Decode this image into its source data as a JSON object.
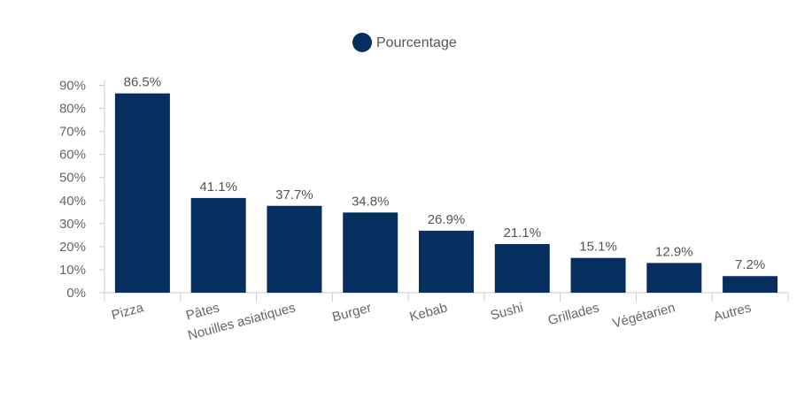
{
  "chart_data": {
    "type": "bar",
    "categories": [
      "Pizza",
      "Pâtes",
      "Nouilles asiatiques",
      "Burger",
      "Kebab",
      "Sushi",
      "Grillades",
      "Végétarien",
      "Autres"
    ],
    "series": [
      {
        "name": "Pourcentage",
        "values": [
          86.5,
          41.1,
          37.7,
          34.8,
          26.9,
          21.1,
          15.1,
          12.9,
          7.2
        ],
        "labels": [
          "86.5%",
          "41.1%",
          "37.7%",
          "34.8%",
          "26.9%",
          "21.1%",
          "15.1%",
          "12.9%",
          "7.2%"
        ]
      }
    ],
    "ylim": [
      0,
      90
    ],
    "yticks": [
      0,
      10,
      20,
      30,
      40,
      50,
      60,
      70,
      80,
      90
    ],
    "ytick_labels": [
      "0%",
      "10%",
      "20%",
      "30%",
      "40%",
      "50%",
      "60%",
      "70%",
      "80%",
      "90%"
    ],
    "legend": {
      "position": "top-center"
    },
    "grid": false,
    "colors": {
      "bar": "#062f5f",
      "axis": "#cccccc",
      "tick_text": "#666666",
      "label_text": "#555555"
    }
  }
}
